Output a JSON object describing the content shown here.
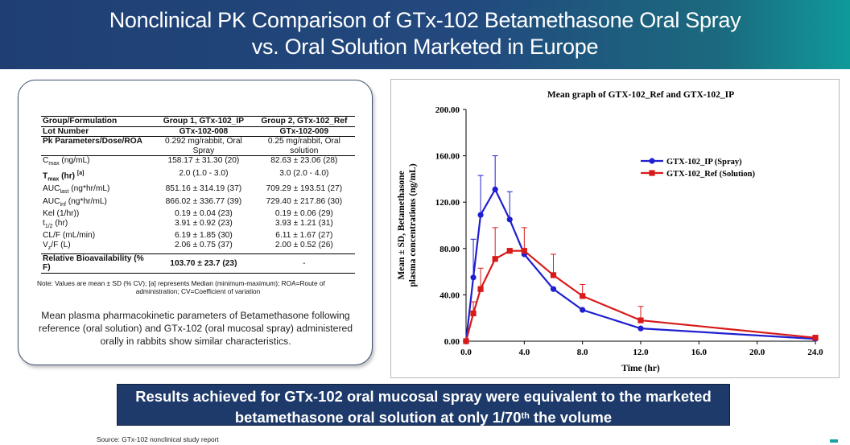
{
  "slide": {
    "title_line1": "Nonclinical PK Comparison of GTx-102 Betamethasone Oral Spray",
    "title_line2": "vs. Oral Solution Marketed in Europe",
    "results_pre": "Results achieved for GTx-102 oral mucosal spray were equivalent to the marketed betamethasone oral solution at only 1/70",
    "results_sup": "th",
    "results_post": " the volume",
    "source": "Source: GTx-102 nonclinical study report"
  },
  "table": {
    "headers": [
      "Group/Formulation",
      "Group 1, GTx-102_IP",
      "Group 2, GTx-102_Ref"
    ],
    "lot": [
      "Lot Number",
      "GTx-102-008",
      "GTx-102-009"
    ],
    "pk_dose": [
      "Pk Parameters/Dose/ROA",
      "0.292 mg/rabbit, Oral Spray",
      "0.25 mg/rabbit, Oral solution"
    ],
    "rows": [
      {
        "param": "C",
        "sub": "max",
        "suffix": " (ng/mL)",
        "g1": "158.17 ± 31.30 (20)",
        "g2": "82.63 ± 23.06 (28)"
      },
      {
        "param": "T",
        "sub": "max",
        "suffix": " (hr) ",
        "sup": "[a]",
        "bold": true,
        "g1": "2.0 (1.0 - 3.0)",
        "g2": "3.0 (2.0 - 4.0)"
      },
      {
        "param": "AUC",
        "sub": "last",
        "suffix": " (ng*hr/mL)",
        "g1": "851.16 ± 314.19 (37)",
        "g2": "709.29 ± 193.51 (27)"
      },
      {
        "param": "AUC",
        "sub": "inf",
        "suffix": " (ng*hr/mL)",
        "g1": "866.02 ± 336.77 (39)",
        "g2": "729.40 ± 217.86 (30)"
      },
      {
        "param": "Kel (1/hr))",
        "sub": "",
        "suffix": "",
        "g1": "0.19 ± 0.04 (23)",
        "g2": "0.19 ± 0.06 (29)"
      },
      {
        "param": "t",
        "sub": "1/2",
        "suffix": " (hr)",
        "g1": "3.91 ± 0.92 (23)",
        "g2": "3.93 ± 1.21 (31)"
      },
      {
        "param": "CL/F (mL/min)",
        "sub": "",
        "suffix": "",
        "g1": "6.19 ± 1.85 (30)",
        "g2": "6.11 ± 1.67 (27)"
      },
      {
        "param": "V",
        "sub": "z",
        "suffix": "/F (L)",
        "g1": "2.06 ± 0.75 (37)",
        "g2": "2.00 ± 0.52 (26)"
      }
    ],
    "relative": [
      "Relative Bioavailability (% F)",
      "103.70 ± 23.7 (23)",
      "-"
    ],
    "note_line1": "Note: Values are mean ± SD (% CV); [a] represents Median (minimum-maximum); ROA=Route of",
    "note_line2": "administration; CV=Coefficient of variation",
    "description": "Mean plasma pharmacokinetic parameters of Betamethasone following reference (oral solution) and GTx-102 (oral mucosal spray) administered orally in rabbits show similar characteristics."
  },
  "chart_data": {
    "type": "line",
    "title": "Mean graph of GTX-102_Ref and GTX-102_IP",
    "xlabel": "Time (hr)",
    "ylabel_line1": "Mean ± SD, Betamethasone",
    "ylabel_line2": "plasma concentrations (ng/mL)",
    "xlim": [
      0,
      24
    ],
    "ylim": [
      0,
      200
    ],
    "xticks": [
      0,
      4,
      8,
      12,
      16,
      20,
      24
    ],
    "xtick_labels": [
      "0.0",
      "4.0",
      "8.0",
      "12.0",
      "16.0",
      "20.0",
      "24.0"
    ],
    "yticks": [
      0,
      40,
      80,
      120,
      160,
      200
    ],
    "ytick_labels": [
      "0.00",
      "40.00",
      "80.00",
      "120.00",
      "160.00",
      "200.00"
    ],
    "legend_position": "upper-right",
    "series": [
      {
        "name": "GTX-102_IP (Spray)",
        "color": "#1f1fd1",
        "marker": "circle",
        "x": [
          0,
          0.5,
          1,
          2,
          3,
          4,
          6,
          8,
          12,
          24
        ],
        "y": [
          0,
          55,
          109,
          131,
          105,
          75,
          45,
          27,
          11,
          2
        ],
        "err": [
          0,
          33,
          34,
          29,
          24,
          0,
          0,
          0,
          0,
          0
        ]
      },
      {
        "name": "GTX-102_Ref (Solution)",
        "color": "#d81919",
        "marker": "square",
        "x": [
          0,
          0.5,
          1,
          2,
          3,
          4,
          6,
          8,
          12,
          24
        ],
        "y": [
          0,
          24,
          45,
          71,
          78,
          78,
          57,
          39,
          18,
          3
        ],
        "err": [
          0,
          10,
          18,
          27,
          0,
          20,
          18,
          10,
          12,
          2
        ]
      }
    ]
  }
}
